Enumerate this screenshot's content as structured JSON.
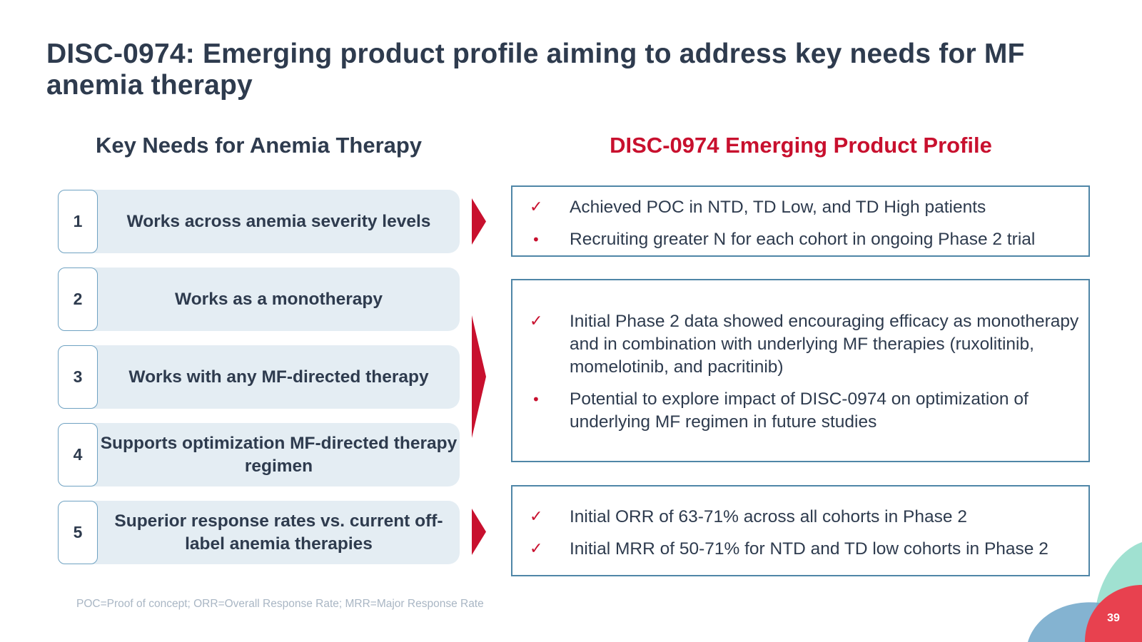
{
  "title": "DISC-0974: Emerging product profile aiming to address key needs for MF anemia therapy",
  "left_column": {
    "heading": "Key Needs for Anemia Therapy",
    "items": [
      {
        "number": "1",
        "label": "Works across anemia severity levels"
      },
      {
        "number": "2",
        "label": "Works as a monotherapy"
      },
      {
        "number": "3",
        "label": "Works with any MF-directed therapy"
      },
      {
        "number": "4",
        "label": "Supports optimization MF-directed therapy regimen"
      },
      {
        "number": "5",
        "label": "Superior response rates vs. current off-label anemia therapies"
      }
    ]
  },
  "right_column": {
    "heading": "DISC-0974 Emerging Product Profile",
    "boxes": [
      {
        "bullets": [
          {
            "marker": "check",
            "text": "Achieved POC in NTD, TD Low, and TD High patients"
          },
          {
            "marker": "dot",
            "text": "Recruiting greater N for each cohort in ongoing Phase 2 trial"
          }
        ]
      },
      {
        "bullets": [
          {
            "marker": "check",
            "text": "Initial Phase 2 data showed encouraging efficacy as monotherapy and in combination with underlying MF therapies (ruxolitinib, momelotinib, and pacritinib)"
          },
          {
            "marker": "dot",
            "text": "Potential to explore impact of DISC-0974 on optimization of underlying MF regimen in future studies"
          }
        ]
      },
      {
        "bullets": [
          {
            "marker": "check",
            "text": "Initial ORR of 63-71% across all cohorts in Phase 2"
          },
          {
            "marker": "check",
            "text": "Initial MRR of 50-71% for NTD and TD low cohorts in Phase 2"
          }
        ]
      }
    ]
  },
  "markers": {
    "check": "✓",
    "dot": "•"
  },
  "footnote": "POC=Proof of concept; ORR=Overall Response Rate; MRR=Major Response Rate",
  "page_number": "39",
  "colors": {
    "title": "#2e3b4e",
    "accent_red": "#c8102e",
    "pill_background": "#e4edf3",
    "box_border": "#4f86a7",
    "footnote": "#a9b6c4"
  }
}
